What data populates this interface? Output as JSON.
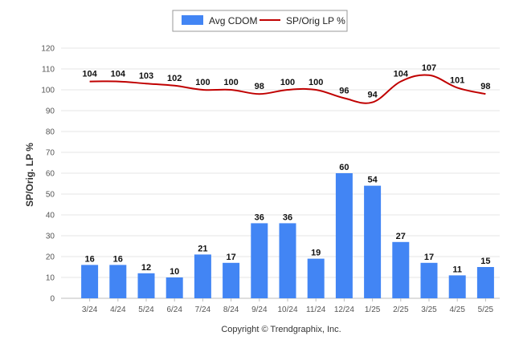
{
  "chart_data": {
    "type": "bar",
    "categories": [
      "3/24",
      "4/24",
      "5/24",
      "6/24",
      "7/24",
      "8/24",
      "9/24",
      "10/24",
      "11/24",
      "12/24",
      "1/25",
      "2/25",
      "3/25",
      "4/25",
      "5/25"
    ],
    "series": [
      {
        "name": "Avg CDOM",
        "type": "bar",
        "color": "#4285f4",
        "values": [
          16,
          16,
          12,
          10,
          21,
          17,
          36,
          36,
          19,
          60,
          54,
          27,
          17,
          11,
          15
        ]
      },
      {
        "name": "SP/Orig LP %",
        "type": "line",
        "color": "#c00000",
        "values": [
          104,
          104,
          103,
          102,
          100,
          100,
          98,
          100,
          100,
          96,
          94,
          104,
          107,
          101,
          98
        ]
      }
    ],
    "ylabel": "SP/Orig. LP %",
    "ylim": [
      0,
      120
    ],
    "yticks": [
      0,
      10,
      20,
      30,
      40,
      50,
      60,
      70,
      80,
      90,
      100,
      110,
      120
    ],
    "grid": true,
    "legend": "top-center"
  },
  "footer": "Copyright © Trendgraphix, Inc."
}
